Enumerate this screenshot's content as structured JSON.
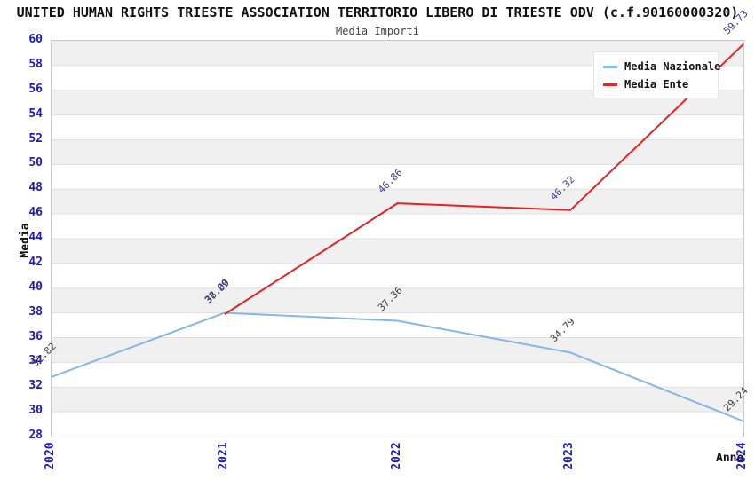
{
  "header": {
    "title": "UNITED HUMAN RIGHTS TRIESTE ASSOCIATION TERRITORIO LIBERO DI TRIESTE ODV (c.f.90160000320)",
    "subtitle": "Media Importi"
  },
  "legend": {
    "items": [
      {
        "label": "Media Nazionale",
        "color": "#85b6e8"
      },
      {
        "label": "Media Ente",
        "color": "#e62222"
      }
    ]
  },
  "axes": {
    "x_title": "Anno",
    "y_title": "Media",
    "x_ticks": [
      "2020",
      "2021",
      "2022",
      "2023",
      "2024"
    ],
    "y_tick_labels": [
      "60",
      "58",
      "56",
      "54",
      "52",
      "50",
      "48",
      "46",
      "44",
      "42",
      "40",
      "38",
      "36",
      "34",
      "32",
      "30",
      "28"
    ],
    "tick_color": "#1a1acc"
  },
  "chart_data": {
    "type": "line",
    "title": "Media Importi",
    "xlabel": "Anno",
    "ylabel": "Media",
    "x": [
      2020,
      2021,
      2022,
      2023,
      2024
    ],
    "xlim": [
      2020,
      2024
    ],
    "ylim": [
      28,
      60
    ],
    "ytick_step": 2,
    "grid": true,
    "gridline_color": "#e0e0e0",
    "background_bands": [
      "#f0f0f0",
      "#ffffff"
    ],
    "legend_position": "top-right",
    "series": [
      {
        "name": "Media Nazionale",
        "color": "#85b6e8",
        "label_color": "#3d3d3d",
        "points": [
          {
            "x": 2020,
            "y": 32.82,
            "label": "32.82"
          },
          {
            "x": 2021,
            "y": 38.0,
            "label": "38.00"
          },
          {
            "x": 2022,
            "y": 37.36,
            "label": "37.36"
          },
          {
            "x": 2023,
            "y": 34.79,
            "label": "34.79"
          },
          {
            "x": 2024,
            "y": 29.24,
            "label": "29.24"
          }
        ]
      },
      {
        "name": "Media Ente",
        "color": "#e62222",
        "label_color": "#3c3c96",
        "points": [
          {
            "x": 2021,
            "y": 37.89,
            "label": "37.89"
          },
          {
            "x": 2022,
            "y": 46.86,
            "label": "46.86"
          },
          {
            "x": 2023,
            "y": 46.32,
            "label": "46.32"
          },
          {
            "x": 2024,
            "y": 59.73,
            "label": "59.73"
          }
        ]
      }
    ]
  }
}
